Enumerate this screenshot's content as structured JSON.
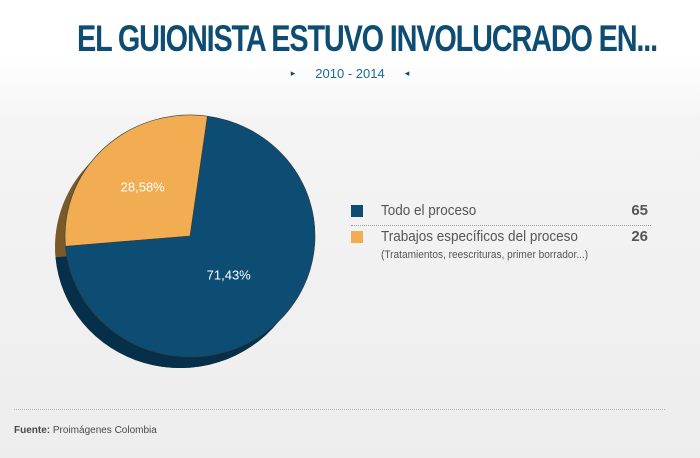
{
  "header": {
    "title": "EL GUIONISTA ESTUVO INVOLUCRADO EN...",
    "subtitle": "2010 - 2014",
    "left_marker": "▸",
    "right_marker": "◂"
  },
  "chart_data": {
    "type": "pie",
    "title": "EL GUIONISTA ESTUVO INVOLUCRADO EN...",
    "subtitle": "2010 - 2014",
    "slices": [
      {
        "label": "Todo el proceso",
        "value": 65,
        "percent_label": "71,43%",
        "color": "#0d4d73",
        "side_color": "#062f49"
      },
      {
        "label": "Trabajos específicos del proceso",
        "note": "(Tratamientos, reescrituras, primer borrador...)",
        "value": 26,
        "percent_label": "28,58%",
        "color": "#f2ad53",
        "side_color": "#7a5a2b"
      }
    ],
    "legend_placement": "right",
    "style": "3d"
  },
  "footer": {
    "source_label": "Fuente:",
    "source_text": "Proimágenes Colombia"
  }
}
